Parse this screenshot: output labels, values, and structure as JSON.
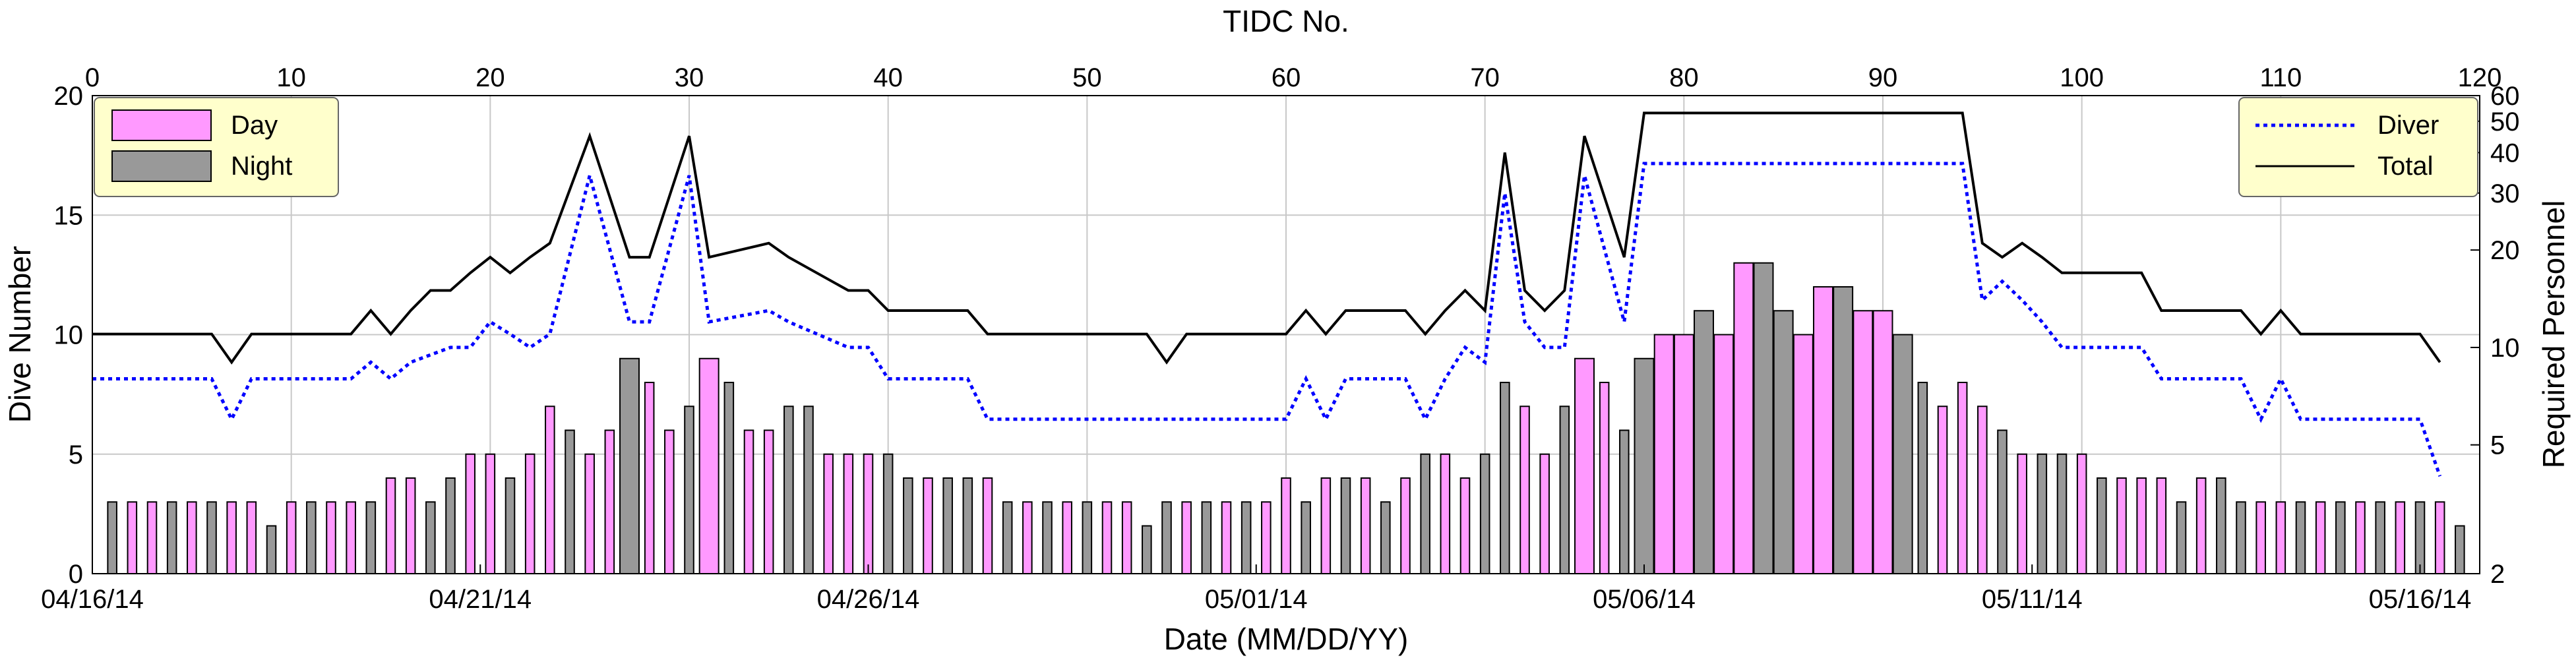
{
  "chart_data": {
    "type": "bar+line",
    "title": "",
    "xlabel_bottom": "Date (MM/DD/YY)",
    "xlabel_top": "TIDC No.",
    "ylabel_left": "Dive Number",
    "ylabel_right": "Required Personnel",
    "x_date_ticks": [
      "04/16/14",
      "04/21/14",
      "04/26/14",
      "05/01/14",
      "05/06/14",
      "05/11/14",
      "05/16/14"
    ],
    "x_top_ticks": [
      "0",
      "10",
      "20",
      "30",
      "40",
      "50",
      "60",
      "70",
      "80",
      "90",
      "100",
      "110",
      "120"
    ],
    "y_left_ticks": [
      "0",
      "5",
      "10",
      "15",
      "20"
    ],
    "y_left_range": [
      0,
      20
    ],
    "y_right_ticks": [
      "2",
      "5",
      "10",
      "20",
      "30",
      "40",
      "50",
      "60"
    ],
    "y_right_range": [
      2,
      60
    ],
    "y_right_scale": "log",
    "grid": true,
    "legend_bars": {
      "position": "top-left",
      "entries": [
        "Day",
        "Night"
      ]
    },
    "legend_lines": {
      "position": "top-right",
      "entries": [
        "Diver",
        "Total"
      ]
    },
    "colors": {
      "day": "#FF99FF",
      "night": "#999999",
      "diver": "#0000FF",
      "total": "#000000",
      "legend_bg": "#FFFFCC"
    },
    "tidc": [
      1,
      2,
      3,
      4,
      5,
      6,
      7,
      8,
      9,
      10,
      11,
      12,
      13,
      14,
      15,
      16,
      17,
      18,
      19,
      20,
      21,
      22,
      23,
      24,
      25,
      26,
      27,
      28,
      29,
      30,
      31,
      32,
      33,
      34,
      35,
      36,
      37,
      38,
      39,
      40,
      41,
      42,
      43,
      44,
      45,
      46,
      47,
      48,
      49,
      50,
      51,
      52,
      53,
      54,
      55,
      56,
      57,
      58,
      59,
      60,
      61,
      62,
      63,
      64,
      65,
      66,
      67,
      68,
      69,
      70,
      71,
      72,
      73,
      74,
      75,
      76,
      77,
      78,
      79,
      80,
      81,
      82,
      83,
      84,
      85,
      86,
      87,
      88,
      89,
      90,
      91,
      92,
      93,
      94,
      95,
      96,
      97,
      98,
      99,
      100,
      101,
      102,
      103,
      104,
      105,
      106,
      107,
      108,
      109,
      110,
      111,
      112,
      113,
      114,
      115,
      116,
      117,
      118,
      119
    ],
    "shift": [
      "N",
      "D",
      "D",
      "N",
      "D",
      "N",
      "D",
      "D",
      "N",
      "D",
      "N",
      "D",
      "D",
      "N",
      "D",
      "D",
      "N",
      "N",
      "D",
      "D",
      "N",
      "D",
      "D",
      "N",
      "D",
      "D",
      "N",
      "D",
      "D",
      "N",
      "D",
      "N",
      "D",
      "D",
      "N",
      "N",
      "D",
      "D",
      "D",
      "N",
      "N",
      "D",
      "N",
      "N",
      "D",
      "N",
      "D",
      "N",
      "D",
      "N",
      "D",
      "D",
      "N",
      "N",
      "D",
      "N",
      "D",
      "N",
      "D",
      "D",
      "N",
      "D",
      "N",
      "D",
      "N",
      "D",
      "N",
      "D",
      "D",
      "N",
      "N",
      "D",
      "D",
      "N",
      "D",
      "D",
      "N",
      "N",
      "D",
      "D",
      "N",
      "D",
      "D",
      "N",
      "N",
      "D",
      "D",
      "N",
      "D",
      "D",
      "N",
      "N",
      "D",
      "D",
      "D",
      "N",
      "D",
      "N",
      "N",
      "D",
      "N",
      "D",
      "D",
      "D",
      "N",
      "D",
      "N",
      "N",
      "D",
      "D",
      "N",
      "D",
      "N",
      "D",
      "N",
      "D",
      "N",
      "D",
      "N"
    ],
    "dives": [
      3,
      3,
      3,
      3,
      3,
      3,
      3,
      3,
      2,
      3,
      3,
      3,
      3,
      3,
      4,
      4,
      3,
      4,
      5,
      5,
      4,
      5,
      7,
      6,
      5,
      6,
      9,
      8,
      6,
      7,
      9,
      8,
      6,
      6,
      7,
      7,
      5,
      5,
      5,
      5,
      4,
      4,
      4,
      4,
      4,
      3,
      3,
      3,
      3,
      3,
      3,
      3,
      2,
      3,
      3,
      3,
      3,
      3,
      3,
      4,
      3,
      4,
      4,
      4,
      3,
      4,
      5,
      5,
      4,
      5,
      8,
      7,
      5,
      7,
      9,
      8,
      6,
      9,
      10,
      10,
      11,
      10,
      13,
      13,
      11,
      10,
      12,
      12,
      11,
      11,
      10,
      8,
      7,
      8,
      7,
      6,
      5,
      5,
      5,
      5,
      4,
      4,
      4,
      4,
      3,
      4,
      4,
      3,
      3,
      3,
      3,
      3,
      3,
      3,
      3,
      3,
      3,
      3,
      2
    ],
    "diver": [
      [
        0,
        8
      ],
      [
        6,
        8
      ],
      [
        7,
        6
      ],
      [
        8,
        8
      ],
      [
        13,
        8
      ],
      [
        14,
        9
      ],
      [
        15,
        8
      ],
      [
        16,
        9
      ],
      [
        18,
        10
      ],
      [
        19,
        10
      ],
      [
        20,
        12
      ],
      [
        21,
        11
      ],
      [
        22,
        10
      ],
      [
        23,
        11
      ],
      [
        25,
        34
      ],
      [
        27,
        12
      ],
      [
        28,
        12
      ],
      [
        30,
        34
      ],
      [
        31,
        12
      ],
      [
        34,
        13
      ],
      [
        35,
        12
      ],
      [
        38,
        10
      ],
      [
        39,
        10
      ],
      [
        40,
        8
      ],
      [
        44,
        8
      ],
      [
        45,
        6
      ],
      [
        46,
        6
      ],
      [
        54,
        6
      ],
      [
        55,
        6
      ],
      [
        60,
        6
      ],
      [
        61,
        8
      ],
      [
        62,
        6
      ],
      [
        63,
        8
      ],
      [
        66,
        8
      ],
      [
        67,
        6
      ],
      [
        68,
        8
      ],
      [
        69,
        10
      ],
      [
        70,
        9
      ],
      [
        71,
        30
      ],
      [
        72,
        12
      ],
      [
        73,
        10
      ],
      [
        74,
        10
      ],
      [
        75,
        34
      ],
      [
        77,
        12
      ],
      [
        78,
        37
      ],
      [
        94,
        37
      ],
      [
        95,
        14
      ],
      [
        96,
        16
      ],
      [
        97,
        14
      ],
      [
        98,
        12
      ],
      [
        99,
        10
      ],
      [
        103,
        10
      ],
      [
        104,
        8
      ],
      [
        108,
        8
      ],
      [
        109,
        6
      ],
      [
        110,
        8
      ],
      [
        111,
        6
      ],
      [
        117,
        6
      ],
      [
        118,
        4
      ]
    ],
    "total": [
      [
        0,
        11
      ],
      [
        6,
        11
      ],
      [
        7,
        9
      ],
      [
        8,
        11
      ],
      [
        13,
        11
      ],
      [
        14,
        13
      ],
      [
        15,
        11
      ],
      [
        16,
        13
      ],
      [
        17,
        15
      ],
      [
        18,
        15
      ],
      [
        19,
        17
      ],
      [
        20,
        19
      ],
      [
        21,
        17
      ],
      [
        22,
        19
      ],
      [
        23,
        21
      ],
      [
        25,
        45
      ],
      [
        27,
        19
      ],
      [
        28,
        19
      ],
      [
        30,
        45
      ],
      [
        31,
        19
      ],
      [
        34,
        21
      ],
      [
        35,
        19
      ],
      [
        38,
        15
      ],
      [
        39,
        15
      ],
      [
        40,
        13
      ],
      [
        44,
        13
      ],
      [
        45,
        11
      ],
      [
        46,
        11
      ],
      [
        53,
        11
      ],
      [
        54,
        9
      ],
      [
        55,
        11
      ],
      [
        60,
        11
      ],
      [
        61,
        13
      ],
      [
        62,
        11
      ],
      [
        63,
        13
      ],
      [
        66,
        13
      ],
      [
        67,
        11
      ],
      [
        68,
        13
      ],
      [
        69,
        15
      ],
      [
        70,
        13
      ],
      [
        71,
        40
      ],
      [
        72,
        15
      ],
      [
        73,
        13
      ],
      [
        74,
        15
      ],
      [
        75,
        45
      ],
      [
        77,
        19
      ],
      [
        78,
        53
      ],
      [
        94,
        53
      ],
      [
        95,
        21
      ],
      [
        96,
        19
      ],
      [
        97,
        21
      ],
      [
        98,
        19
      ],
      [
        99,
        17
      ],
      [
        103,
        17
      ],
      [
        104,
        13
      ],
      [
        108,
        13
      ],
      [
        109,
        11
      ],
      [
        110,
        13
      ],
      [
        111,
        11
      ],
      [
        117,
        11
      ],
      [
        118,
        9
      ]
    ]
  }
}
